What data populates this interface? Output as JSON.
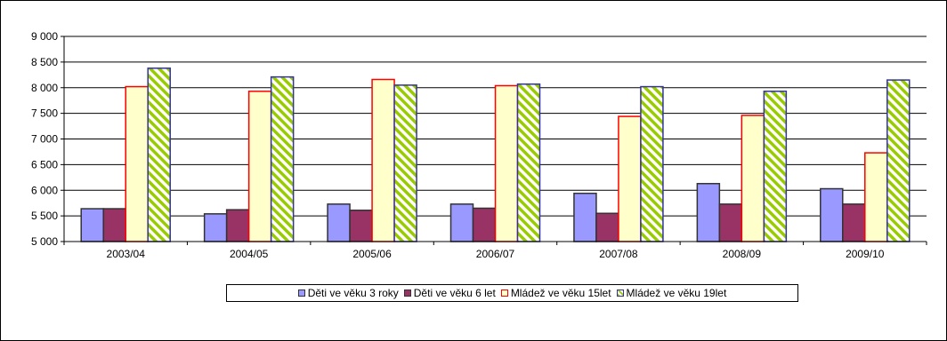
{
  "chart_data": {
    "type": "bar",
    "title": "",
    "xlabel": "",
    "ylabel": "",
    "categories": [
      "2003/04",
      "2004/05",
      "2005/06",
      "2006/07",
      "2007/08",
      "2008/09",
      "2009/10"
    ],
    "ylim": [
      5000,
      9000
    ],
    "yticks": [
      5000,
      5500,
      6000,
      6500,
      7000,
      7500,
      8000,
      8500,
      9000
    ],
    "ytick_labels": [
      "5 000",
      "5 500",
      "6 000",
      "6 500",
      "7 000",
      "7 500",
      "8 000",
      "8 500",
      "9 000"
    ],
    "grid": true,
    "legend_position": "bottom",
    "series": [
      {
        "name": "Děti ve věku 3 roky",
        "values": [
          5640,
          5540,
          5730,
          5730,
          5940,
          6130,
          6030
        ],
        "fill": "#9999ff",
        "stroke": "#333333",
        "pattern": "solid"
      },
      {
        "name": "Děti ve věku 6 let",
        "values": [
          5640,
          5620,
          5610,
          5650,
          5550,
          5730,
          5730
        ],
        "fill": "#993366",
        "stroke": "#333333",
        "pattern": "solid"
      },
      {
        "name": "Mládež ve věku 15let",
        "values": [
          8020,
          7930,
          8160,
          8040,
          7440,
          7460,
          6730
        ],
        "fill": "#ffffcc",
        "stroke": "#ff0000",
        "pattern": "solid"
      },
      {
        "name": "Mládež ve věku 19let",
        "values": [
          8380,
          8210,
          8050,
          8070,
          8020,
          7930,
          8150
        ],
        "fill": "#99cc00",
        "stroke": "#333399",
        "pattern": "diagonal-stripes"
      }
    ]
  }
}
